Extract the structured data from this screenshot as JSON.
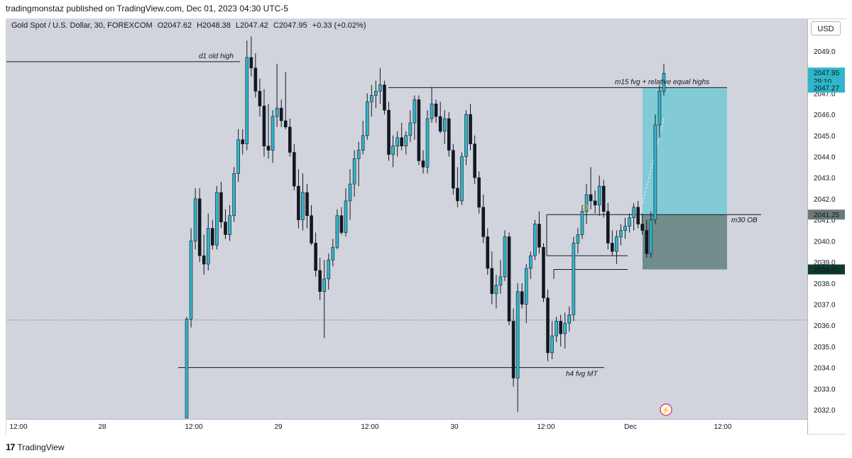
{
  "header": {
    "publish_line": "tradingmonstaz published on TradingView.com, Dec 01, 2023 04:30 UTC-5"
  },
  "legend": {
    "symbol": "Gold Spot / U.S. Dollar, 30, FOREXCOM",
    "open": "O2047.62",
    "high": "H2048.38",
    "low": "L2047.42",
    "close": "C2047.95",
    "change": "+0.33 (+0.02%)"
  },
  "currency_button": "USD",
  "footer": {
    "logo": "17",
    "brand": "TradingView"
  },
  "colors": {
    "background": "#d1d4dc",
    "bull": "#2fb6c9",
    "bear": "#131722",
    "fvg_zone": "#7ec9d6",
    "ob_zone": "#6b8a87",
    "price_label": "#2fb6c9",
    "dark_label": "#0d3b2e"
  },
  "chart_data": {
    "type": "candlestick",
    "title": "Gold Spot / U.S. Dollar, 30, FOREXCOM",
    "ylim": [
      2031.6,
      2049.5
    ],
    "y_ticks": [
      2032.0,
      2033.0,
      2034.0,
      2035.0,
      2036.0,
      2037.0,
      2038.0,
      2039.0,
      2040.0,
      2041.0,
      2042.0,
      2043.0,
      2044.0,
      2045.0,
      2046.0,
      2047.0,
      2048.0,
      2049.0
    ],
    "x_ticks": [
      "12:00",
      "28",
      "12:00",
      "29",
      "12:00",
      "30",
      "12:00",
      "Dec",
      "12:00"
    ],
    "price_labels": [
      {
        "value": "2047.95",
        "sub": "29:10",
        "kind": "current"
      },
      {
        "value": "2047.27",
        "kind": "zone"
      },
      {
        "value": "2041.25",
        "kind": "zone"
      },
      {
        "value": "2038.65",
        "kind": "dark"
      }
    ],
    "annotations": {
      "d1": "d1 old high",
      "m15": "m15 fvg + relative equal highs",
      "m30": "m30 OB",
      "h4": "h4 fvg MT"
    },
    "levels": {
      "d1_high": 2048.5,
      "m15_high": 2047.27,
      "m30_ob": 2041.25,
      "ob_low": 2038.65,
      "h4_fvg": 2034.0,
      "dotted_last": 2036.25
    },
    "candles": [
      {
        "o": 2031.6,
        "h": 2036.4,
        "l": 2031.6,
        "c": 2036.3
      },
      {
        "o": 2036.3,
        "h": 2040.6,
        "l": 2035.9,
        "c": 2040.0
      },
      {
        "o": 2040.0,
        "h": 2042.5,
        "l": 2039.6,
        "c": 2042.0
      },
      {
        "o": 2042.0,
        "h": 2042.5,
        "l": 2039.0,
        "c": 2039.3
      },
      {
        "o": 2039.3,
        "h": 2040.3,
        "l": 2038.4,
        "c": 2038.9
      },
      {
        "o": 2038.9,
        "h": 2041.3,
        "l": 2038.6,
        "c": 2040.6
      },
      {
        "o": 2040.6,
        "h": 2041.0,
        "l": 2039.6,
        "c": 2039.8
      },
      {
        "o": 2039.8,
        "h": 2042.6,
        "l": 2039.6,
        "c": 2042.3
      },
      {
        "o": 2042.3,
        "h": 2042.8,
        "l": 2040.6,
        "c": 2040.9
      },
      {
        "o": 2040.9,
        "h": 2041.5,
        "l": 2040.1,
        "c": 2040.3
      },
      {
        "o": 2040.3,
        "h": 2041.7,
        "l": 2040.0,
        "c": 2041.2
      },
      {
        "o": 2041.2,
        "h": 2043.5,
        "l": 2040.9,
        "c": 2043.2
      },
      {
        "o": 2043.2,
        "h": 2045.3,
        "l": 2042.8,
        "c": 2044.8
      },
      {
        "o": 2044.8,
        "h": 2045.3,
        "l": 2044.1,
        "c": 2044.6
      },
      {
        "o": 2044.6,
        "h": 2049.5,
        "l": 2044.3,
        "c": 2048.7
      },
      {
        "o": 2048.7,
        "h": 2049.7,
        "l": 2047.8,
        "c": 2048.2
      },
      {
        "o": 2048.2,
        "h": 2048.9,
        "l": 2046.8,
        "c": 2047.1
      },
      {
        "o": 2047.1,
        "h": 2047.7,
        "l": 2045.9,
        "c": 2046.4
      },
      {
        "o": 2046.4,
        "h": 2047.2,
        "l": 2044.0,
        "c": 2044.5
      },
      {
        "o": 2044.5,
        "h": 2046.5,
        "l": 2043.9,
        "c": 2044.3
      },
      {
        "o": 2044.3,
        "h": 2046.2,
        "l": 2043.7,
        "c": 2045.9
      },
      {
        "o": 2045.9,
        "h": 2048.4,
        "l": 2045.4,
        "c": 2046.3
      },
      {
        "o": 2046.3,
        "h": 2046.7,
        "l": 2045.4,
        "c": 2045.7
      },
      {
        "o": 2045.7,
        "h": 2048.0,
        "l": 2045.3,
        "c": 2045.4
      },
      {
        "o": 2045.4,
        "h": 2045.8,
        "l": 2044.0,
        "c": 2044.2
      },
      {
        "o": 2044.2,
        "h": 2044.6,
        "l": 2042.4,
        "c": 2042.6
      },
      {
        "o": 2042.6,
        "h": 2043.4,
        "l": 2040.6,
        "c": 2041.0
      },
      {
        "o": 2041.0,
        "h": 2043.2,
        "l": 2040.5,
        "c": 2042.3
      },
      {
        "o": 2042.3,
        "h": 2042.7,
        "l": 2040.6,
        "c": 2041.2
      },
      {
        "o": 2041.2,
        "h": 2041.7,
        "l": 2039.8,
        "c": 2039.9
      },
      {
        "o": 2039.9,
        "h": 2040.4,
        "l": 2038.3,
        "c": 2038.6
      },
      {
        "o": 2038.6,
        "h": 2039.2,
        "l": 2037.2,
        "c": 2037.6
      },
      {
        "o": 2037.6,
        "h": 2039.1,
        "l": 2035.4,
        "c": 2038.2
      },
      {
        "o": 2038.2,
        "h": 2039.4,
        "l": 2037.7,
        "c": 2039.1
      },
      {
        "o": 2039.1,
        "h": 2040.1,
        "l": 2038.8,
        "c": 2039.7
      },
      {
        "o": 2039.7,
        "h": 2041.5,
        "l": 2039.6,
        "c": 2041.2
      },
      {
        "o": 2041.2,
        "h": 2041.6,
        "l": 2040.3,
        "c": 2040.4
      },
      {
        "o": 2040.4,
        "h": 2042.5,
        "l": 2040.2,
        "c": 2041.9
      },
      {
        "o": 2041.9,
        "h": 2043.4,
        "l": 2041.0,
        "c": 2042.7
      },
      {
        "o": 2042.7,
        "h": 2044.3,
        "l": 2042.1,
        "c": 2043.9
      },
      {
        "o": 2043.9,
        "h": 2044.7,
        "l": 2042.6,
        "c": 2044.3
      },
      {
        "o": 2044.3,
        "h": 2045.7,
        "l": 2044.1,
        "c": 2045.0
      },
      {
        "o": 2045.0,
        "h": 2047.0,
        "l": 2044.8,
        "c": 2046.6
      },
      {
        "o": 2046.6,
        "h": 2047.4,
        "l": 2045.9,
        "c": 2046.9
      },
      {
        "o": 2046.9,
        "h": 2047.6,
        "l": 2046.3,
        "c": 2047.1
      },
      {
        "o": 2047.1,
        "h": 2048.2,
        "l": 2046.5,
        "c": 2047.4
      },
      {
        "o": 2047.4,
        "h": 2047.6,
        "l": 2046.0,
        "c": 2046.2
      },
      {
        "o": 2046.2,
        "h": 2046.6,
        "l": 2043.8,
        "c": 2044.1
      },
      {
        "o": 2044.1,
        "h": 2045.0,
        "l": 2043.5,
        "c": 2044.5
      },
      {
        "o": 2044.5,
        "h": 2045.2,
        "l": 2044.0,
        "c": 2044.9
      },
      {
        "o": 2044.9,
        "h": 2045.6,
        "l": 2044.3,
        "c": 2044.5
      },
      {
        "o": 2044.5,
        "h": 2045.2,
        "l": 2044.1,
        "c": 2045.0
      },
      {
        "o": 2045.0,
        "h": 2046.2,
        "l": 2044.7,
        "c": 2045.6
      },
      {
        "o": 2045.6,
        "h": 2046.9,
        "l": 2044.8,
        "c": 2046.7
      },
      {
        "o": 2046.7,
        "h": 2046.9,
        "l": 2043.6,
        "c": 2043.8
      },
      {
        "o": 2043.8,
        "h": 2044.3,
        "l": 2043.2,
        "c": 2043.5
      },
      {
        "o": 2043.5,
        "h": 2046.2,
        "l": 2043.2,
        "c": 2045.8
      },
      {
        "o": 2045.8,
        "h": 2047.3,
        "l": 2045.6,
        "c": 2046.5
      },
      {
        "o": 2046.5,
        "h": 2046.7,
        "l": 2045.6,
        "c": 2045.9
      },
      {
        "o": 2045.9,
        "h": 2046.6,
        "l": 2045.1,
        "c": 2045.2
      },
      {
        "o": 2045.2,
        "h": 2046.2,
        "l": 2044.6,
        "c": 2045.8
      },
      {
        "o": 2045.8,
        "h": 2046.1,
        "l": 2044.0,
        "c": 2044.3
      },
      {
        "o": 2044.3,
        "h": 2044.6,
        "l": 2042.2,
        "c": 2042.5
      },
      {
        "o": 2042.5,
        "h": 2043.5,
        "l": 2041.6,
        "c": 2041.9
      },
      {
        "o": 2041.9,
        "h": 2044.2,
        "l": 2041.7,
        "c": 2044.0
      },
      {
        "o": 2044.0,
        "h": 2046.2,
        "l": 2043.6,
        "c": 2046.0
      },
      {
        "o": 2046.0,
        "h": 2046.5,
        "l": 2044.3,
        "c": 2044.6
      },
      {
        "o": 2044.6,
        "h": 2045.0,
        "l": 2042.7,
        "c": 2043.0
      },
      {
        "o": 2043.0,
        "h": 2043.3,
        "l": 2041.3,
        "c": 2041.6
      },
      {
        "o": 2041.6,
        "h": 2042.2,
        "l": 2039.9,
        "c": 2040.2
      },
      {
        "o": 2040.2,
        "h": 2040.6,
        "l": 2038.4,
        "c": 2038.7
      },
      {
        "o": 2038.7,
        "h": 2039.5,
        "l": 2037.0,
        "c": 2037.5
      },
      {
        "o": 2037.5,
        "h": 2038.4,
        "l": 2036.8,
        "c": 2037.9
      },
      {
        "o": 2037.9,
        "h": 2039.1,
        "l": 2037.5,
        "c": 2038.3
      },
      {
        "o": 2038.3,
        "h": 2040.5,
        "l": 2038.1,
        "c": 2040.2
      },
      {
        "o": 2040.2,
        "h": 2040.4,
        "l": 2036.0,
        "c": 2036.2
      },
      {
        "o": 2036.2,
        "h": 2036.8,
        "l": 2033.1,
        "c": 2033.5
      },
      {
        "o": 2033.5,
        "h": 2038.0,
        "l": 2031.9,
        "c": 2037.6
      },
      {
        "o": 2037.6,
        "h": 2038.0,
        "l": 2036.8,
        "c": 2037.0
      },
      {
        "o": 2037.0,
        "h": 2038.9,
        "l": 2036.1,
        "c": 2038.7
      },
      {
        "o": 2038.7,
        "h": 2039.5,
        "l": 2038.2,
        "c": 2039.3
      },
      {
        "o": 2039.3,
        "h": 2041.0,
        "l": 2039.1,
        "c": 2040.8
      },
      {
        "o": 2040.8,
        "h": 2041.4,
        "l": 2039.4,
        "c": 2039.7
      },
      {
        "o": 2039.7,
        "h": 2039.9,
        "l": 2037.1,
        "c": 2037.3
      },
      {
        "o": 2037.3,
        "h": 2037.7,
        "l": 2034.3,
        "c": 2034.7
      },
      {
        "o": 2034.7,
        "h": 2036.2,
        "l": 2034.4,
        "c": 2035.5
      },
      {
        "o": 2035.5,
        "h": 2036.4,
        "l": 2035.2,
        "c": 2036.2
      },
      {
        "o": 2036.2,
        "h": 2036.5,
        "l": 2035.0,
        "c": 2035.6
      },
      {
        "o": 2035.6,
        "h": 2036.6,
        "l": 2034.9,
        "c": 2036.1
      },
      {
        "o": 2036.1,
        "h": 2036.9,
        "l": 2035.7,
        "c": 2036.5
      },
      {
        "o": 2036.5,
        "h": 2040.2,
        "l": 2036.2,
        "c": 2039.9
      },
      {
        "o": 2039.9,
        "h": 2040.6,
        "l": 2039.4,
        "c": 2040.3
      },
      {
        "o": 2040.3,
        "h": 2041.7,
        "l": 2040.1,
        "c": 2041.4
      },
      {
        "o": 2041.4,
        "h": 2042.7,
        "l": 2040.8,
        "c": 2042.2
      },
      {
        "o": 2042.2,
        "h": 2043.5,
        "l": 2041.5,
        "c": 2041.9
      },
      {
        "o": 2041.9,
        "h": 2042.4,
        "l": 2041.3,
        "c": 2041.7
      },
      {
        "o": 2041.7,
        "h": 2043.1,
        "l": 2041.2,
        "c": 2042.6
      },
      {
        "o": 2042.6,
        "h": 2042.9,
        "l": 2041.1,
        "c": 2041.4
      },
      {
        "o": 2041.4,
        "h": 2041.8,
        "l": 2039.6,
        "c": 2039.9
      },
      {
        "o": 2039.9,
        "h": 2040.5,
        "l": 2039.3,
        "c": 2039.5
      },
      {
        "o": 2039.5,
        "h": 2040.5,
        "l": 2038.9,
        "c": 2040.2
      },
      {
        "o": 2040.2,
        "h": 2040.8,
        "l": 2039.8,
        "c": 2040.5
      },
      {
        "o": 2040.5,
        "h": 2041.1,
        "l": 2040.1,
        "c": 2040.7
      },
      {
        "o": 2040.7,
        "h": 2041.3,
        "l": 2040.4,
        "c": 2041.1
      },
      {
        "o": 2041.1,
        "h": 2041.8,
        "l": 2040.5,
        "c": 2041.6
      },
      {
        "o": 2041.6,
        "h": 2041.9,
        "l": 2040.6,
        "c": 2040.8
      },
      {
        "o": 2040.8,
        "h": 2041.3,
        "l": 2040.3,
        "c": 2040.5
      },
      {
        "o": 2040.5,
        "h": 2041.0,
        "l": 2039.2,
        "c": 2039.4
      },
      {
        "o": 2039.4,
        "h": 2041.4,
        "l": 2039.2,
        "c": 2041.0
      },
      {
        "o": 2041.0,
        "h": 2046.0,
        "l": 2040.8,
        "c": 2045.5
      },
      {
        "o": 2045.5,
        "h": 2047.4,
        "l": 2044.9,
        "c": 2047.1
      },
      {
        "o": 2047.1,
        "h": 2048.4,
        "l": 2046.9,
        "c": 2047.95
      }
    ]
  }
}
